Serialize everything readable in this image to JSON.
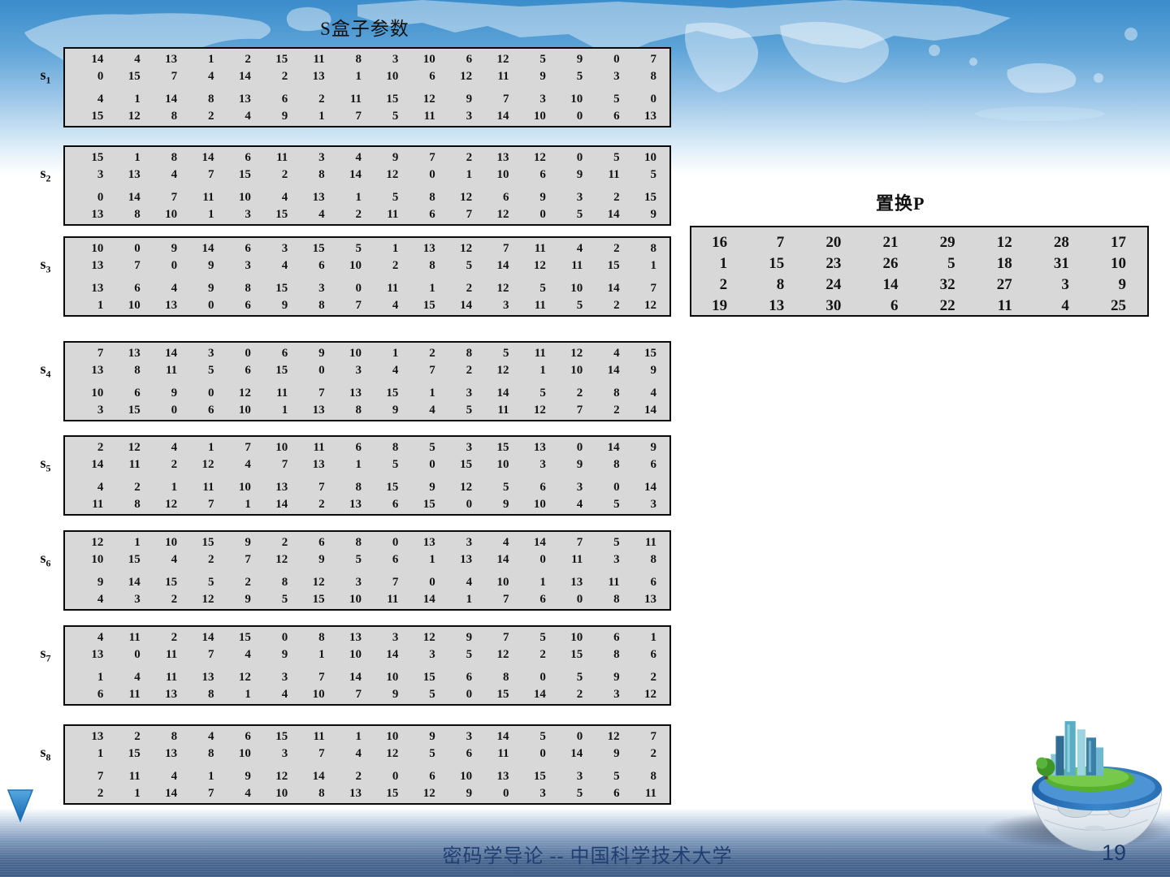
{
  "slide": {
    "title": "S盒子参数",
    "p_title": "置换P",
    "footer": "密码学导论 -- 中国科学技术大学",
    "page_number": "19"
  },
  "sboxes": [
    {
      "base": "s",
      "sub": "1",
      "rows": [
        [
          14,
          4,
          13,
          1,
          2,
          15,
          11,
          8,
          3,
          10,
          6,
          12,
          5,
          9,
          0,
          7
        ],
        [
          0,
          15,
          7,
          4,
          14,
          2,
          13,
          1,
          10,
          6,
          12,
          11,
          9,
          5,
          3,
          8
        ],
        [
          4,
          1,
          14,
          8,
          13,
          6,
          2,
          11,
          15,
          12,
          9,
          7,
          3,
          10,
          5,
          0
        ],
        [
          15,
          12,
          8,
          2,
          4,
          9,
          1,
          7,
          5,
          11,
          3,
          14,
          10,
          0,
          6,
          13
        ]
      ]
    },
    {
      "base": "s",
      "sub": "2",
      "rows": [
        [
          15,
          1,
          8,
          14,
          6,
          11,
          3,
          4,
          9,
          7,
          2,
          13,
          12,
          0,
          5,
          10
        ],
        [
          3,
          13,
          4,
          7,
          15,
          2,
          8,
          14,
          12,
          0,
          1,
          10,
          6,
          9,
          11,
          5
        ],
        [
          0,
          14,
          7,
          11,
          10,
          4,
          13,
          1,
          5,
          8,
          12,
          6,
          9,
          3,
          2,
          15
        ],
        [
          13,
          8,
          10,
          1,
          3,
          15,
          4,
          2,
          11,
          6,
          7,
          12,
          0,
          5,
          14,
          9
        ]
      ]
    },
    {
      "base": "s",
      "sub": "3",
      "rows": [
        [
          10,
          0,
          9,
          14,
          6,
          3,
          15,
          5,
          1,
          13,
          12,
          7,
          11,
          4,
          2,
          8
        ],
        [
          13,
          7,
          0,
          9,
          3,
          4,
          6,
          10,
          2,
          8,
          5,
          14,
          12,
          11,
          15,
          1
        ],
        [
          13,
          6,
          4,
          9,
          8,
          15,
          3,
          0,
          11,
          1,
          2,
          12,
          5,
          10,
          14,
          7
        ],
        [
          1,
          10,
          13,
          0,
          6,
          9,
          8,
          7,
          4,
          15,
          14,
          3,
          11,
          5,
          2,
          12
        ]
      ]
    },
    {
      "base": "s",
      "sub": "4",
      "rows": [
        [
          7,
          13,
          14,
          3,
          0,
          6,
          9,
          10,
          1,
          2,
          8,
          5,
          11,
          12,
          4,
          15
        ],
        [
          13,
          8,
          11,
          5,
          6,
          15,
          0,
          3,
          4,
          7,
          2,
          12,
          1,
          10,
          14,
          9
        ],
        [
          10,
          6,
          9,
          0,
          12,
          11,
          7,
          13,
          15,
          1,
          3,
          14,
          5,
          2,
          8,
          4
        ],
        [
          3,
          15,
          0,
          6,
          10,
          1,
          13,
          8,
          9,
          4,
          5,
          11,
          12,
          7,
          2,
          14
        ]
      ]
    },
    {
      "base": "s",
      "sub": "5",
      "rows": [
        [
          2,
          12,
          4,
          1,
          7,
          10,
          11,
          6,
          8,
          5,
          3,
          15,
          13,
          0,
          14,
          9
        ],
        [
          14,
          11,
          2,
          12,
          4,
          7,
          13,
          1,
          5,
          0,
          15,
          10,
          3,
          9,
          8,
          6
        ],
        [
          4,
          2,
          1,
          11,
          10,
          13,
          7,
          8,
          15,
          9,
          12,
          5,
          6,
          3,
          0,
          14
        ],
        [
          11,
          8,
          12,
          7,
          1,
          14,
          2,
          13,
          6,
          15,
          0,
          9,
          10,
          4,
          5,
          3
        ]
      ]
    },
    {
      "base": "s",
      "sub": "6",
      "rows": [
        [
          12,
          1,
          10,
          15,
          9,
          2,
          6,
          8,
          0,
          13,
          3,
          4,
          14,
          7,
          5,
          11
        ],
        [
          10,
          15,
          4,
          2,
          7,
          12,
          9,
          5,
          6,
          1,
          13,
          14,
          0,
          11,
          3,
          8
        ],
        [
          9,
          14,
          15,
          5,
          2,
          8,
          12,
          3,
          7,
          0,
          4,
          10,
          1,
          13,
          11,
          6
        ],
        [
          4,
          3,
          2,
          12,
          9,
          5,
          15,
          10,
          11,
          14,
          1,
          7,
          6,
          0,
          8,
          13
        ]
      ]
    },
    {
      "base": "s",
      "sub": "7",
      "rows": [
        [
          4,
          11,
          2,
          14,
          15,
          0,
          8,
          13,
          3,
          12,
          9,
          7,
          5,
          10,
          6,
          1
        ],
        [
          13,
          0,
          11,
          7,
          4,
          9,
          1,
          10,
          14,
          3,
          5,
          12,
          2,
          15,
          8,
          6
        ],
        [
          1,
          4,
          11,
          13,
          12,
          3,
          7,
          14,
          10,
          15,
          6,
          8,
          0,
          5,
          9,
          2
        ],
        [
          6,
          11,
          13,
          8,
          1,
          4,
          10,
          7,
          9,
          5,
          0,
          15,
          14,
          2,
          3,
          12
        ]
      ]
    },
    {
      "base": "s",
      "sub": "8",
      "rows": [
        [
          13,
          2,
          8,
          4,
          6,
          15,
          11,
          1,
          10,
          9,
          3,
          14,
          5,
          0,
          12,
          7
        ],
        [
          1,
          15,
          13,
          8,
          10,
          3,
          7,
          4,
          12,
          5,
          6,
          11,
          0,
          14,
          9,
          2
        ],
        [
          7,
          11,
          4,
          1,
          9,
          12,
          14,
          2,
          0,
          6,
          10,
          13,
          15,
          3,
          5,
          8
        ],
        [
          2,
          1,
          14,
          7,
          4,
          10,
          8,
          13,
          15,
          12,
          9,
          0,
          3,
          5,
          6,
          11
        ]
      ]
    }
  ],
  "p_table": {
    "rows": [
      [
        16,
        7,
        20,
        21,
        29,
        12,
        28,
        17
      ],
      [
        1,
        15,
        23,
        26,
        5,
        18,
        31,
        10
      ],
      [
        2,
        8,
        24,
        14,
        32,
        27,
        3,
        9
      ],
      [
        19,
        13,
        30,
        6,
        22,
        11,
        4,
        25
      ]
    ]
  },
  "colors": {
    "table_bg": "#d8d8d8",
    "table_border": "#0a0a0a",
    "number_color": "#141414",
    "footer_color": "#203e72",
    "page_number_color": "#1c3a6e",
    "sky_top": "#3a8ccb",
    "water_deep": "#3c5c86",
    "triangle_blue": "#2878bf"
  }
}
